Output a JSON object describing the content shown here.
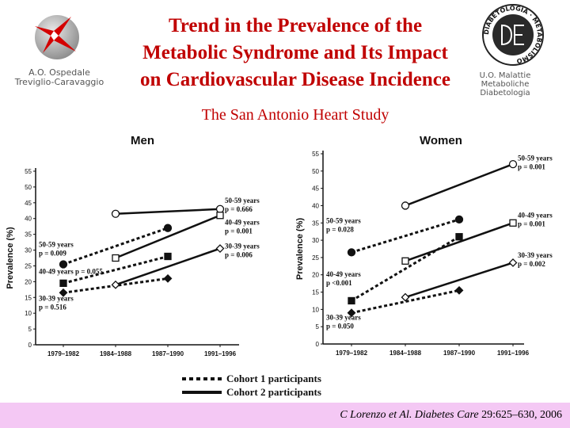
{
  "header": {
    "title_lines": [
      "Trend in the Prevalence of the",
      "Metabolic Syndrome and Its Impact",
      "on Cardiovascular Disease Incidence"
    ],
    "subtitle": "The San Antonio Heart Study",
    "left_logo": {
      "icon": "hospital-logo-icon",
      "caption_lines": [
        "A.O. Ospedale",
        "Treviglio-Caravaggio"
      ]
    },
    "right_logo": {
      "icon": "diabetology-seal-icon",
      "seal_text": "DIABETOLOGIA · METABOLISMO",
      "caption_lines": [
        "U.O. Malattie",
        "Metaboliche",
        "Diabetologia"
      ]
    }
  },
  "chart_data": [
    {
      "type": "line",
      "title": "Men",
      "xlabel": "",
      "ylabel": "Prevalence (%)",
      "categories": [
        "1979–1982",
        "1984–1988",
        "1987–1990",
        "1991–1996"
      ],
      "ylim": [
        0,
        55
      ],
      "yticks": [
        0,
        5,
        10,
        15,
        20,
        25,
        30,
        35,
        40,
        45,
        50,
        55
      ],
      "series": [
        {
          "group": "50-59 years",
          "cohort": 1,
          "marker": "circle-filled",
          "points": [
            [
              "1979–1982",
              25.5
            ],
            [
              "1987–1990",
              37
            ]
          ]
        },
        {
          "group": "40-49 years",
          "cohort": 1,
          "marker": "square-filled",
          "points": [
            [
              "1979–1982",
              19.5
            ],
            [
              "1987–1990",
              28
            ]
          ]
        },
        {
          "group": "30-39 years",
          "cohort": 1,
          "marker": "diamond-filled",
          "points": [
            [
              "1979–1982",
              16.5
            ],
            [
              "1987–1990",
              21
            ]
          ]
        },
        {
          "group": "50-59 years",
          "cohort": 2,
          "marker": "circle-open",
          "points": [
            [
              "1984–1988",
              41.5
            ],
            [
              "1991–1996",
              43
            ]
          ]
        },
        {
          "group": "40-49 years",
          "cohort": 2,
          "marker": "square-open",
          "points": [
            [
              "1984–1988",
              27.5
            ],
            [
              "1991–1996",
              41
            ]
          ]
        },
        {
          "group": "30-39 years",
          "cohort": 2,
          "marker": "diamond-open",
          "points": [
            [
              "1984–1988",
              19
            ],
            [
              "1991–1996",
              30.5
            ]
          ]
        }
      ],
      "annotations": [
        {
          "lines": [
            "50-59 years",
            "p = 0.666"
          ],
          "x": "1991–1996",
          "y": 45,
          "align": "right"
        },
        {
          "lines": [
            "40-49 years",
            "p = 0.001"
          ],
          "x": "1991–1996",
          "y": 38,
          "align": "right"
        },
        {
          "lines": [
            "30-39 years",
            "p = 0.006"
          ],
          "x": "1991–1996",
          "y": 30.5,
          "align": "right"
        },
        {
          "lines": [
            "50-59 years",
            "p = 0.009"
          ],
          "x": "1979–1982",
          "y": 31,
          "align": "left"
        },
        {
          "lines": [
            "40-49 years",
            "p = 0.055"
          ],
          "x": "1979–1982",
          "y": 22.5,
          "align": "left-inline"
        },
        {
          "lines": [
            "30-39 years",
            "p = 0.516"
          ],
          "x": "1979–1982",
          "y": 14,
          "align": "left"
        }
      ]
    },
    {
      "type": "line",
      "title": "Women",
      "xlabel": "",
      "ylabel": "Prevalence (%)",
      "categories": [
        "1979–1982",
        "1984–1988",
        "1987–1990",
        "1991–1996"
      ],
      "ylim": [
        0,
        55
      ],
      "yticks": [
        0,
        5,
        10,
        15,
        20,
        25,
        30,
        35,
        40,
        45,
        50,
        55
      ],
      "series": [
        {
          "group": "50-59 years",
          "cohort": 1,
          "marker": "circle-filled",
          "points": [
            [
              "1979–1982",
              26.5
            ],
            [
              "1987–1990",
              36
            ]
          ]
        },
        {
          "group": "40-49 years",
          "cohort": 1,
          "marker": "square-filled",
          "points": [
            [
              "1979–1982",
              12.5
            ],
            [
              "1987–1990",
              31
            ]
          ]
        },
        {
          "group": "30-39 years",
          "cohort": 1,
          "marker": "diamond-filled",
          "points": [
            [
              "1979–1982",
              9
            ],
            [
              "1987–1990",
              15.5
            ]
          ]
        },
        {
          "group": "50-59 years",
          "cohort": 2,
          "marker": "circle-open",
          "points": [
            [
              "1984–1988",
              40
            ],
            [
              "1991–1996",
              52
            ]
          ]
        },
        {
          "group": "40-49 years",
          "cohort": 2,
          "marker": "square-open",
          "points": [
            [
              "1984–1988",
              24
            ],
            [
              "1991–1996",
              35
            ]
          ]
        },
        {
          "group": "30-39 years",
          "cohort": 2,
          "marker": "diamond-open",
          "points": [
            [
              "1984–1988",
              13.5
            ],
            [
              "1991–1996",
              23.5
            ]
          ]
        }
      ],
      "annotations": [
        {
          "lines": [
            "50-59 years",
            "p = 0.001"
          ],
          "x": "1991–1996",
          "y": 53,
          "align": "right"
        },
        {
          "lines": [
            "40-49 years",
            "p = 0.001"
          ],
          "x": "1991–1996",
          "y": 36.5,
          "align": "right"
        },
        {
          "lines": [
            "30-39 years",
            "p = 0.002"
          ],
          "x": "1991–1996",
          "y": 25,
          "align": "right"
        },
        {
          "lines": [
            "50-59 years",
            "p = 0.028"
          ],
          "x": "1979–1982",
          "y": 35,
          "align": "left"
        },
        {
          "lines": [
            "40-49 years",
            "p <0.001"
          ],
          "x": "1979–1982",
          "y": 19.5,
          "align": "left"
        },
        {
          "lines": [
            "30-39 years",
            "p = 0.050"
          ],
          "x": "1979–1982",
          "y": 7,
          "align": "left"
        }
      ]
    }
  ],
  "legend": {
    "items": [
      {
        "label": "Cohort 1 participants",
        "style": "dotted"
      },
      {
        "label": "Cohort 2 participants",
        "style": "solid"
      }
    ]
  },
  "footer": {
    "citation_italic": "C Lorenzo et Al. Diabetes Care",
    "citation_rest": " 29:625–630, 2006",
    "background": "#f4c8f4"
  },
  "colors": {
    "title": "#c00000",
    "lines": "#111111"
  }
}
